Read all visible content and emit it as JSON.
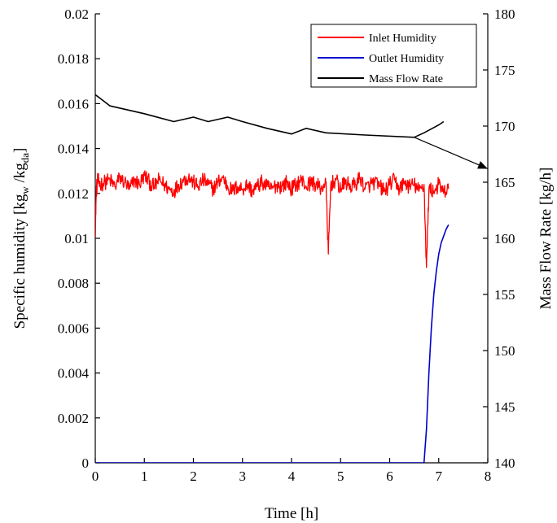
{
  "chart_data": {
    "type": "line",
    "xlabel": "Time [h]",
    "ylabel_left": {
      "main": "Specific humidity [kg",
      "sub_w": "w",
      "mid": " /kg",
      "sub_da": "da",
      "end": "]"
    },
    "ylabel_right": "Mass Flow Rate [kg/h]",
    "xlim": [
      0,
      8
    ],
    "ylim_left": [
      0,
      0.02
    ],
    "ylim_right": [
      140,
      180
    ],
    "x_ticks": [
      "0",
      "1",
      "2",
      "3",
      "4",
      "5",
      "6",
      "7",
      "8"
    ],
    "y_left_ticks": [
      "0",
      "0.002",
      "0.004",
      "0.006",
      "0.008",
      "0.01",
      "0.012",
      "0.014",
      "0.016",
      "0.018",
      "0.02"
    ],
    "y_right_ticks": [
      "140",
      "145",
      "150",
      "155",
      "160",
      "165",
      "170",
      "175",
      "180"
    ],
    "legend": {
      "placement": "top-right"
    },
    "series": [
      {
        "name": "Inlet Humidity",
        "axis": "left",
        "color": "#ff0000",
        "noise": true,
        "x": [
          0.0,
          0.02,
          0.05,
          0.1,
          0.2,
          0.3,
          0.4,
          0.5,
          0.6,
          0.7,
          0.8,
          0.9,
          1.0,
          1.1,
          1.2,
          1.3,
          1.4,
          1.5,
          1.6,
          1.7,
          1.8,
          1.9,
          2.0,
          2.1,
          2.2,
          2.3,
          2.4,
          2.5,
          2.6,
          2.7,
          2.8,
          2.9,
          3.0,
          3.1,
          3.2,
          3.3,
          3.4,
          3.5,
          3.6,
          3.7,
          3.8,
          3.9,
          4.0,
          4.1,
          4.2,
          4.3,
          4.4,
          4.5,
          4.6,
          4.7,
          4.75,
          4.8,
          4.9,
          5.0,
          5.1,
          5.2,
          5.3,
          5.4,
          5.5,
          5.6,
          5.7,
          5.8,
          5.9,
          6.0,
          6.1,
          6.2,
          6.3,
          6.4,
          6.5,
          6.6,
          6.7,
          6.75,
          6.8,
          6.9,
          7.0,
          7.1,
          7.2
        ],
        "y": [
          0.0102,
          0.0121,
          0.0126,
          0.0124,
          0.0125,
          0.0126,
          0.0123,
          0.0127,
          0.0125,
          0.0122,
          0.0126,
          0.0124,
          0.0128,
          0.0125,
          0.0123,
          0.0126,
          0.0124,
          0.0122,
          0.0121,
          0.0124,
          0.0126,
          0.0127,
          0.0125,
          0.0123,
          0.0126,
          0.0124,
          0.0122,
          0.0125,
          0.0127,
          0.0123,
          0.0121,
          0.0123,
          0.0122,
          0.0124,
          0.0121,
          0.0123,
          0.0125,
          0.0123,
          0.0122,
          0.0124,
          0.0123,
          0.0125,
          0.0122,
          0.0124,
          0.0126,
          0.0123,
          0.0125,
          0.0124,
          0.0122,
          0.0125,
          0.0093,
          0.0124,
          0.0126,
          0.0122,
          0.0125,
          0.0123,
          0.0124,
          0.0127,
          0.0122,
          0.0124,
          0.0125,
          0.0123,
          0.0121,
          0.0124,
          0.0126,
          0.0122,
          0.0125,
          0.0123,
          0.0124,
          0.0121,
          0.0124,
          0.0087,
          0.0122,
          0.0121,
          0.0124,
          0.012,
          0.0122
        ]
      },
      {
        "name": "Outlet Humidity",
        "axis": "left",
        "color": "#0000cc",
        "noise": false,
        "x": [
          0,
          6.7,
          6.75,
          6.8,
          6.85,
          6.9,
          6.95,
          7.0,
          7.05,
          7.1,
          7.15,
          7.2
        ],
        "y": [
          0,
          0,
          0.0015,
          0.004,
          0.006,
          0.0075,
          0.0085,
          0.0093,
          0.0098,
          0.0101,
          0.0104,
          0.0106
        ]
      },
      {
        "name": "Mass Flow Rate",
        "axis": "right",
        "color": "#000000",
        "noise": false,
        "x": [
          0,
          0.3,
          1.0,
          1.6,
          2.0,
          2.3,
          2.7,
          3.0,
          3.5,
          4.0,
          4.3,
          4.7,
          5.5,
          6.5,
          6.7,
          7.0,
          7.1
        ],
        "y": [
          172.8,
          171.8,
          171.1,
          170.4,
          170.8,
          170.4,
          170.8,
          170.4,
          169.8,
          169.3,
          169.8,
          169.4,
          169.2,
          169.0,
          169.4,
          170.1,
          170.4
        ]
      }
    ],
    "annotation": {
      "type": "arrow",
      "from": [
        6.5,
        169.0
      ],
      "to": [
        8.0,
        166.2
      ]
    }
  }
}
